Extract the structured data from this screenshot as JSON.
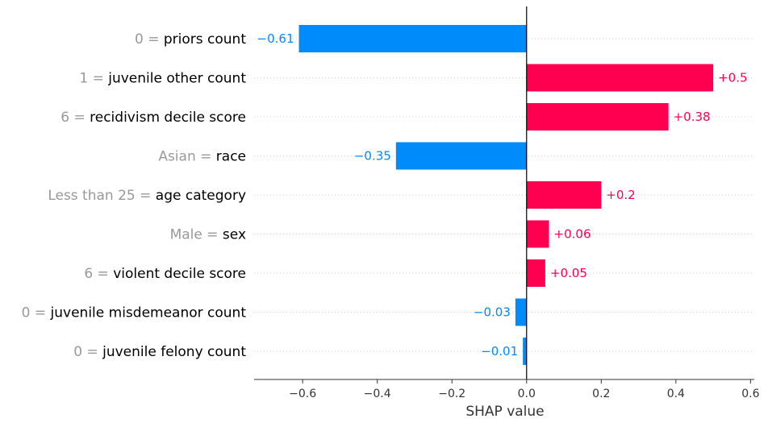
{
  "chart_data": {
    "type": "bar",
    "orientation": "horizontal",
    "xlabel": "SHAP value",
    "xlim": [
      -0.73,
      0.61
    ],
    "xticks": [
      -0.6,
      -0.4,
      -0.2,
      0.0,
      0.2,
      0.4,
      0.6
    ],
    "xtick_labels": [
      "−0.6",
      "−0.4",
      "−0.2",
      "0.0",
      "0.2",
      "0.4",
      "0.6"
    ],
    "grid": "horizontal dotted row lines",
    "colors": {
      "positive": "#ff0051",
      "negative": "#008bfb",
      "feature_value": "#999999",
      "feature_name": "#000000"
    },
    "features": [
      {
        "value_label": "0",
        "name": "priors count",
        "shap": -0.61,
        "label": "−0.61"
      },
      {
        "value_label": "1",
        "name": "juvenile other count",
        "shap": 0.5,
        "label": "+0.5"
      },
      {
        "value_label": "6",
        "name": "recidivism decile score",
        "shap": 0.38,
        "label": "+0.38"
      },
      {
        "value_label": "Asian",
        "name": "race",
        "shap": -0.35,
        "label": "−0.35"
      },
      {
        "value_label": "Less than 25",
        "name": "age category",
        "shap": 0.2,
        "label": "+0.2"
      },
      {
        "value_label": "Male",
        "name": "sex",
        "shap": 0.06,
        "label": "+0.06"
      },
      {
        "value_label": "6",
        "name": "violent decile score",
        "shap": 0.05,
        "label": "+0.05"
      },
      {
        "value_label": "0",
        "name": "juvenile misdemeanor count",
        "shap": -0.03,
        "label": "−0.03"
      },
      {
        "value_label": "0",
        "name": "juvenile felony count",
        "shap": -0.01,
        "label": "−0.01"
      }
    ]
  }
}
